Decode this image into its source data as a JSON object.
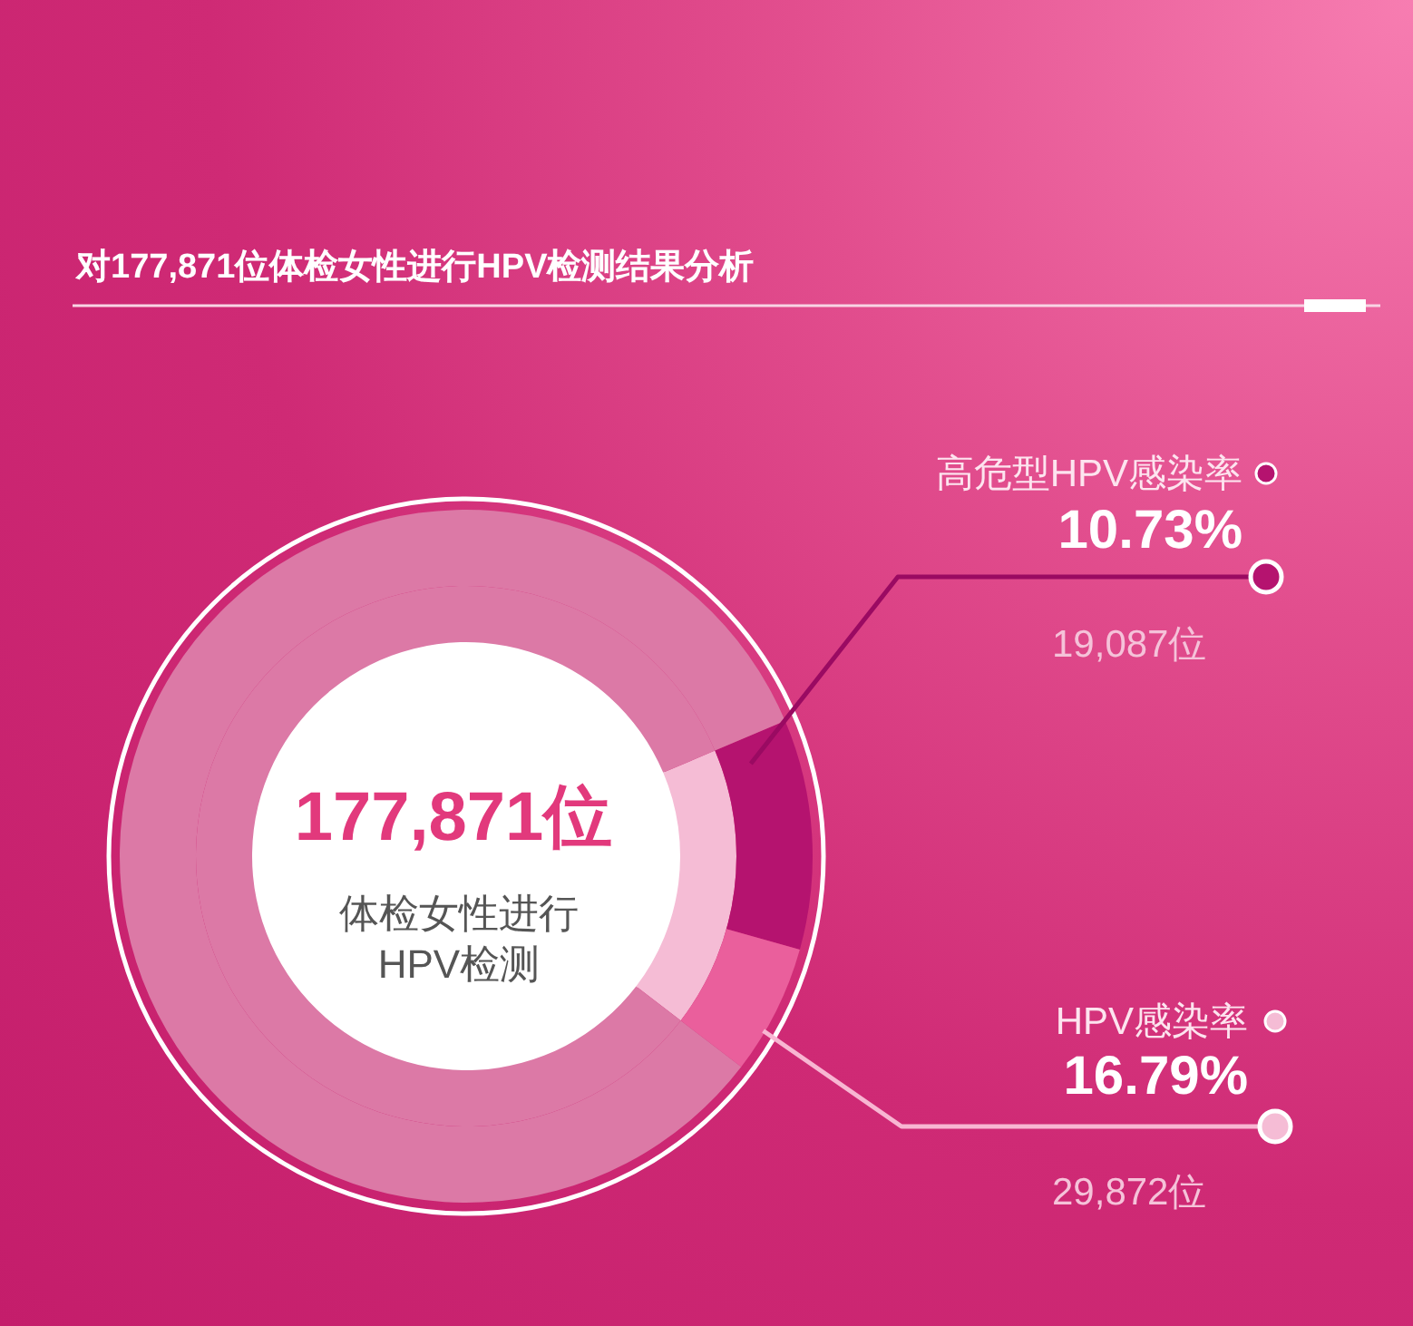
{
  "chart_data": {
    "type": "donut",
    "title": "对177,871位体检女性进行HPV检测结果分析",
    "categories": [
      "高危型HPV感染率",
      "HPV感染率",
      null
    ],
    "series": [
      {
        "values": [
          null,
          16.79,
          83.21
        ],
        "colors": [
          null,
          "#f5bcd5",
          "#dc79a6"
        ],
        "value_labels": [
          null,
          "16.79%",
          null
        ]
      },
      {
        "values": [
          10.73,
          6.06,
          83.21
        ],
        "colors": [
          "#b5136f",
          "#ea5f9c",
          "#dc79a6"
        ],
        "value_labels": [
          "10.73%",
          null,
          null
        ]
      }
    ],
    "legend": "right",
    "annotations": [
      "177,871位",
      "体检女性进行HPV检测",
      "19,087位",
      "29,872位"
    ]
  }
}
